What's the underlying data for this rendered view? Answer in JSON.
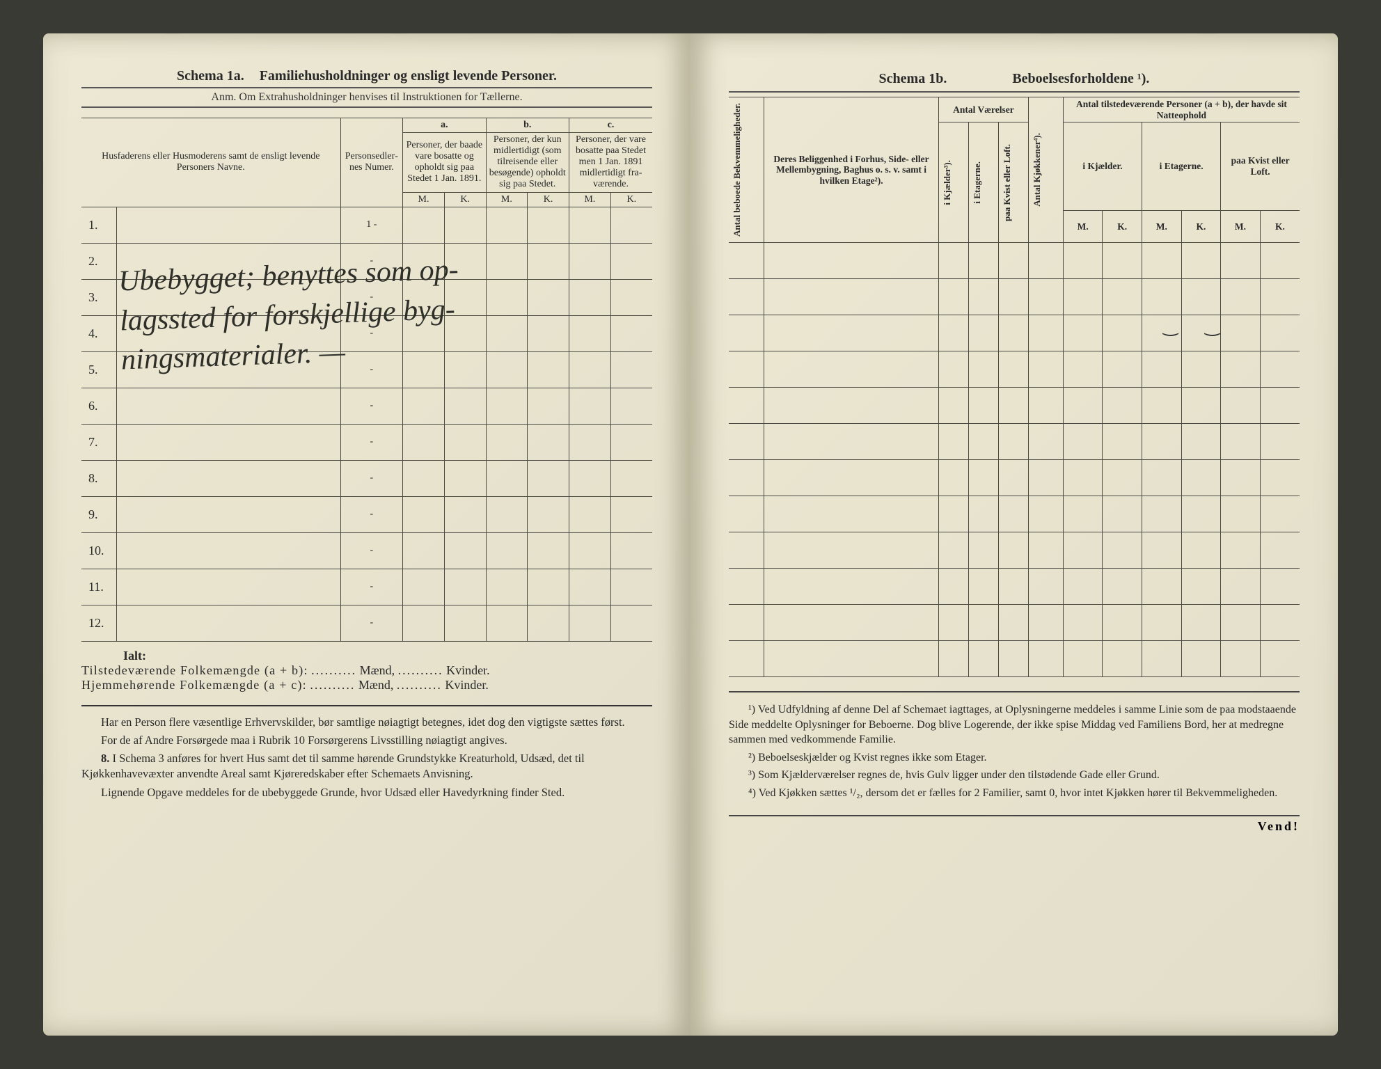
{
  "left": {
    "schema_label": "Schema 1a.",
    "schema_title": "Familiehusholdninger og ensligt levende Personer.",
    "subtitle": "Anm. Om Extrahusholdninger henvises til Instruktionen for Tællerne.",
    "col_names": "Husfaderens eller Husmode­rens samt de ensligt levende Personers Navne.",
    "col_person_num": "Person­sedler­nes Numer.",
    "group_a": "a.",
    "group_b": "b.",
    "group_c": "c.",
    "col_a": "Personer, der baade vare bo­satte og opholdt sig paa Stedet 1 Jan. 1891.",
    "col_b": "Personer, der kun midler­tidigt (som tilreisende eller besøgende) opholdt sig paa Stedet.",
    "col_c": "Personer, der vare bosatte paa Stedet men 1 Jan. 1891 midler­tidigt fra­værende.",
    "mk_m": "M.",
    "mk_k": "K.",
    "row_numbers": [
      "1.",
      "2.",
      "3.",
      "4.",
      "5.",
      "6.",
      "7.",
      "8.",
      "9.",
      "10.",
      "11.",
      "12."
    ],
    "handwriting_text": "Ubebygget; benyttes som op-\nlagssted for forskjellige byg-\nningsmaterialer. —",
    "ialt_label": "Ialt:",
    "ialt_line1_a": "Tilstedeværende Folkemængde (a + b):",
    "ialt_line2_a": "Hjemmehørende Folkemængde (a + c):",
    "ialt_dots": "..........",
    "ialt_maend": "Mænd,",
    "ialt_kvinder": "Kvinder.",
    "notes_p1": "Har en Person flere væsentlige Erhvervskilder, bør samtlige nøiagtigt betegnes, idet dog den vigtigste sættes først.",
    "notes_p2": "For de af Andre Forsørgede maa i Rubrik 10 Forsørgerens Livsstilling nøiagtigt angives.",
    "notes_p3_num": "8.",
    "notes_p3": "I Schema 3 anføres for hvert Hus samt det til samme hørende Grund­stykke Kreaturhold, Udsæd, det til Kjøkkenhavevæxter anvendte Areal samt Kjøreredskaber efter Schemaets Anvisning.",
    "notes_p4": "Lignende Opgave meddeles for de ubebyggede Grunde, hvor Udsæd eller Havedyrkning finder Sted."
  },
  "right": {
    "schema_label": "Schema 1b.",
    "schema_title": "Beboelsesforholdene ¹).",
    "col_antal_bekv": "Antal beboede Bekvemmeligheder.",
    "col_belig": "Deres Beliggenhed i Forhus, Side- eller Mellembygning, Baghus o. s. v. samt i hvilken Etage²).",
    "grp_vaer": "Antal Værelser",
    "col_kjael": "i Kjælder³).",
    "col_etag": "i Etagerne.",
    "col_kvist": "paa Kvist eller Loft.",
    "col_kjok": "Antal Kjøkkener⁴).",
    "grp_pers": "Antal tilstedeværende Personer (a + b), der havde sit Natteophold",
    "sub_kjael": "i Kjæl­der.",
    "sub_etag": "i Etagerne.",
    "sub_kvist": "paa Kvist eller Loft.",
    "mk_m": "M.",
    "mk_k": "K.",
    "rows": 12,
    "fn1": "¹) Ved Udfyldning af denne Del af Schemaet iagttages, at Oplysningerne meddeles i samme Linie som de paa modstaaende Side meddelte Oplysninger for Beboerne. Dog blive Logerende, der ikke spise Middag ved Familiens Bord, her at medregne sammen med vedkommende Familie.",
    "fn2": "²) Beboelseskjælder og Kvist regnes ikke som Etager.",
    "fn3": "³) Som Kjælderværelser regnes de, hvis Gulv ligger under den tilstødende Gade eller Grund.",
    "fn4": "⁴) Ved Kjøkken sættes ¹/₂, dersom det er fælles for 2 Familier, samt 0, hvor intet Kjøkken hører til Bekvemmeligheden.",
    "vend": "Vend!"
  },
  "colors": {
    "ink": "#2a2a2a",
    "rule": "#4a4a42",
    "paper": "#e8e4ce"
  }
}
